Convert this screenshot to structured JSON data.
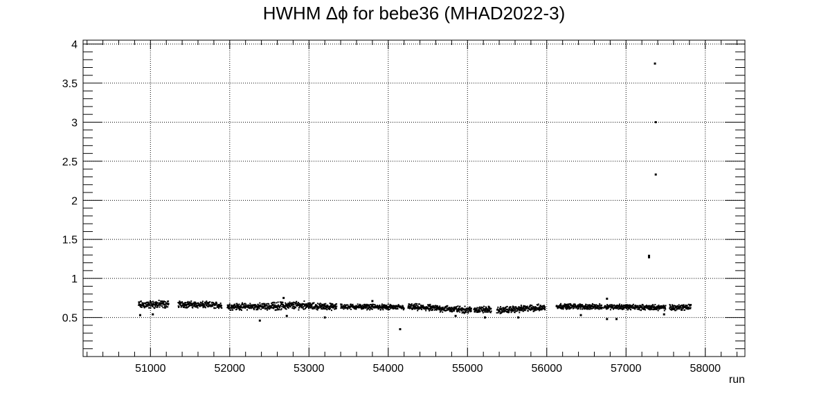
{
  "chart_data": {
    "type": "scatter",
    "title": "HWHM Δϕ for bebe36 (MHAD2022-3)",
    "xlabel": "run",
    "ylabel": "",
    "xlim": [
      50150,
      58500
    ],
    "ylim": [
      0,
      4.05
    ],
    "x_ticks": [
      51000,
      52000,
      53000,
      54000,
      55000,
      56000,
      57000,
      58000
    ],
    "x_tick_labels": [
      "51000",
      "52000",
      "53000",
      "54000",
      "55000",
      "56000",
      "57000",
      "58000"
    ],
    "y_ticks": [
      0.5,
      1,
      1.5,
      2,
      2.5,
      3,
      3.5,
      4
    ],
    "y_tick_labels": [
      "0.5",
      "1",
      "1.5",
      "2",
      "2.5",
      "3",
      "3.5",
      "4"
    ],
    "grid": true,
    "marker_color": "#000000",
    "segments": [
      {
        "x_start": 50850,
        "x_end": 51230,
        "y_start": 0.66,
        "y_end": 0.67,
        "spread": 0.06
      },
      {
        "x_start": 51350,
        "x_end": 51900,
        "y_start": 0.67,
        "y_end": 0.655,
        "spread": 0.05
      },
      {
        "x_start": 51970,
        "x_end": 52520,
        "y_start": 0.64,
        "y_end": 0.64,
        "spread": 0.05
      },
      {
        "x_start": 52520,
        "x_end": 53000,
        "y_start": 0.645,
        "y_end": 0.66,
        "spread": 0.06
      },
      {
        "x_start": 53000,
        "x_end": 53350,
        "y_start": 0.645,
        "y_end": 0.635,
        "spread": 0.05
      },
      {
        "x_start": 53400,
        "x_end": 54200,
        "y_start": 0.64,
        "y_end": 0.63,
        "spread": 0.04
      },
      {
        "x_start": 54250,
        "x_end": 55050,
        "y_start": 0.635,
        "y_end": 0.595,
        "spread": 0.05
      },
      {
        "x_start": 55080,
        "x_end": 55300,
        "y_start": 0.6,
        "y_end": 0.6,
        "spread": 0.05
      },
      {
        "x_start": 55370,
        "x_end": 55980,
        "y_start": 0.59,
        "y_end": 0.63,
        "spread": 0.05
      },
      {
        "x_start": 56120,
        "x_end": 56700,
        "y_start": 0.645,
        "y_end": 0.635,
        "spread": 0.04
      },
      {
        "x_start": 56720,
        "x_end": 57500,
        "y_start": 0.64,
        "y_end": 0.625,
        "spread": 0.04
      },
      {
        "x_start": 57550,
        "x_end": 57820,
        "y_start": 0.625,
        "y_end": 0.635,
        "spread": 0.05
      }
    ],
    "outliers": [
      {
        "x": 54150,
        "y": 0.35
      },
      {
        "x": 57290,
        "y": 1.29
      },
      {
        "x": 57290,
        "y": 1.27
      },
      {
        "x": 57365,
        "y": 3.75
      },
      {
        "x": 57375,
        "y": 3.0
      },
      {
        "x": 57375,
        "y": 2.33
      },
      {
        "x": 52380,
        "y": 0.46
      },
      {
        "x": 56760,
        "y": 0.74
      },
      {
        "x": 56760,
        "y": 0.48
      },
      {
        "x": 56880,
        "y": 0.48
      },
      {
        "x": 55640,
        "y": 0.5
      },
      {
        "x": 53200,
        "y": 0.5
      },
      {
        "x": 51030,
        "y": 0.54
      },
      {
        "x": 50870,
        "y": 0.53
      },
      {
        "x": 52720,
        "y": 0.52
      },
      {
        "x": 54850,
        "y": 0.52
      },
      {
        "x": 55220,
        "y": 0.5
      },
      {
        "x": 53800,
        "y": 0.71
      },
      {
        "x": 52680,
        "y": 0.75
      },
      {
        "x": 56430,
        "y": 0.53
      },
      {
        "x": 57480,
        "y": 0.54
      }
    ]
  }
}
